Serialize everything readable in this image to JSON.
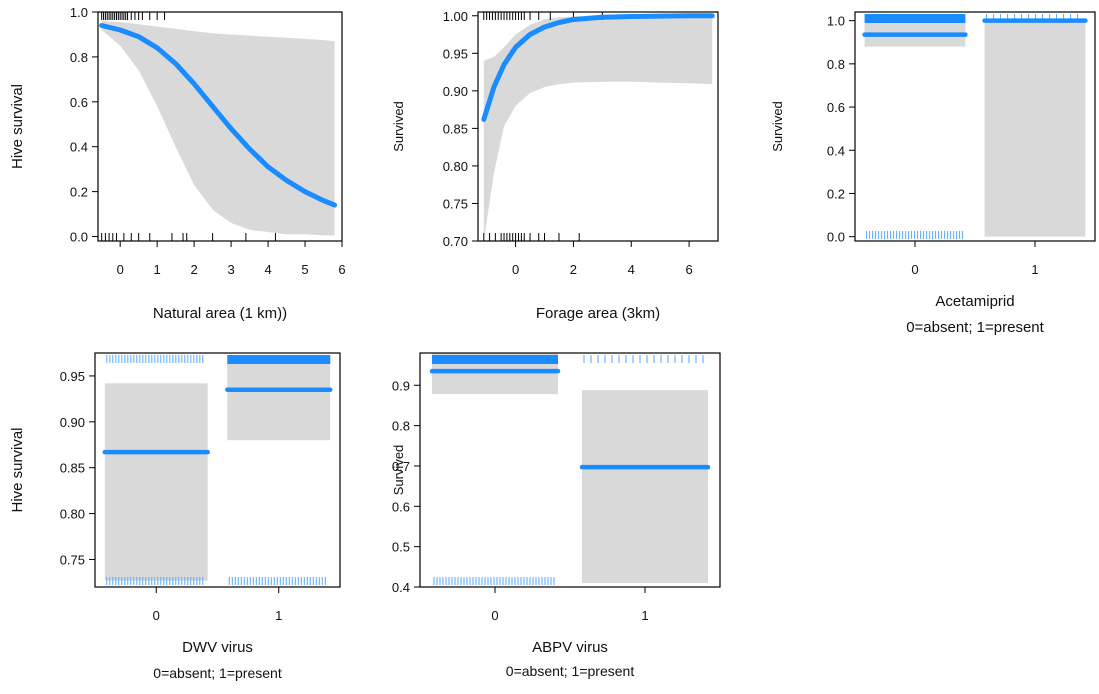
{
  "colors": {
    "line": "#1a8cff",
    "band": "#d9d9d9",
    "frame": "#000000",
    "rug_dark": "#000000",
    "rug_blue": "#55aaff"
  },
  "chart_data": [
    {
      "id": "natural-area",
      "type": "line",
      "ylabel": "Hive survival",
      "xlabel": "Natural area (1 km))",
      "xlim": [
        -0.6,
        6.0
      ],
      "ylim": [
        -0.02,
        1.0
      ],
      "xticks": [
        "0",
        "1",
        "2",
        "3",
        "4",
        "5",
        "6"
      ],
      "xtick_values": [
        0,
        1,
        2,
        3,
        4,
        5,
        6
      ],
      "yticks": [
        "0.0",
        "0.2",
        "0.4",
        "0.6",
        "0.8",
        "1.0"
      ],
      "ytick_values": [
        0.0,
        0.2,
        0.4,
        0.6,
        0.8,
        1.0
      ],
      "series": [
        {
          "x": [
            -0.5,
            0.0,
            0.5,
            1.0,
            1.5,
            2.0,
            2.5,
            3.0,
            3.5,
            4.0,
            4.5,
            5.0,
            5.5,
            5.8
          ],
          "y": [
            0.94,
            0.92,
            0.89,
            0.84,
            0.77,
            0.68,
            0.58,
            0.48,
            0.39,
            0.31,
            0.25,
            0.2,
            0.16,
            0.14
          ],
          "lower": [
            0.92,
            0.85,
            0.74,
            0.58,
            0.4,
            0.23,
            0.12,
            0.06,
            0.03,
            0.02,
            0.01,
            0.01,
            0.005,
            0.005
          ],
          "upper": [
            0.96,
            0.955,
            0.945,
            0.935,
            0.925,
            0.915,
            0.905,
            0.9,
            0.895,
            0.89,
            0.885,
            0.88,
            0.875,
            0.87
          ]
        }
      ],
      "rug_top": [
        -0.5,
        -0.45,
        -0.4,
        -0.35,
        -0.3,
        -0.25,
        -0.2,
        -0.15,
        -0.1,
        -0.05,
        0.0,
        0.05,
        0.1,
        0.15,
        0.2,
        0.3,
        0.4,
        0.5,
        0.6,
        0.8,
        1.0,
        1.2
      ],
      "rug_bottom": [
        -0.5,
        -0.4,
        -0.3,
        -0.2,
        -0.1,
        0.1,
        0.3,
        0.5,
        0.8,
        1.4,
        1.7,
        1.8,
        2.5,
        3.4,
        4.2
      ]
    },
    {
      "id": "forage-area",
      "type": "line",
      "ylabel": "Survived",
      "xlabel": "Forage area (3km)",
      "xlim": [
        -1.3,
        7.0
      ],
      "ylim": [
        0.7,
        1.005
      ],
      "xticks": [
        "0",
        "2",
        "4",
        "6"
      ],
      "xtick_values": [
        0,
        2,
        4,
        6
      ],
      "yticks": [
        "0.70",
        "0.75",
        "0.80",
        "0.85",
        "0.90",
        "0.95",
        "1.00"
      ],
      "ytick_values": [
        0.7,
        0.75,
        0.8,
        0.85,
        0.9,
        0.95,
        1.0
      ],
      "series": [
        {
          "x": [
            -1.1,
            -0.75,
            -0.4,
            0.0,
            0.5,
            1.0,
            1.5,
            2.0,
            3.0,
            4.0,
            5.0,
            6.0,
            6.8
          ],
          "y": [
            0.862,
            0.905,
            0.935,
            0.958,
            0.975,
            0.985,
            0.991,
            0.995,
            0.998,
            0.999,
            0.9995,
            1.0,
            1.0
          ],
          "lower": [
            0.7,
            0.79,
            0.853,
            0.88,
            0.897,
            0.905,
            0.909,
            0.911,
            0.912,
            0.912,
            0.911,
            0.91,
            0.909
          ],
          "upper": [
            0.94,
            0.945,
            0.958,
            0.975,
            0.988,
            0.995,
            0.998,
            0.999,
            1.0,
            1.0,
            1.0,
            1.0,
            1.0
          ]
        }
      ],
      "rug_top": [
        -1.1,
        -1.0,
        -0.9,
        -0.8,
        -0.7,
        -0.6,
        -0.5,
        -0.4,
        -0.3,
        -0.2,
        -0.1,
        0.0,
        0.1,
        0.2,
        0.3,
        0.5,
        0.8,
        1.2,
        2.0,
        3.0
      ],
      "rug_bottom": [
        -1.1,
        -0.9,
        -0.7,
        -0.5,
        -0.4,
        -0.3,
        -0.2,
        -0.1,
        0.0,
        0.1,
        0.2,
        0.3,
        0.5,
        0.8,
        1.0,
        1.5,
        2.2
      ]
    },
    {
      "id": "acetamiprid",
      "type": "bar",
      "ylabel": "Survived",
      "xlabel": "Acetamiprid",
      "sublabel": "0=absent; 1=present",
      "categories": [
        "0",
        "1"
      ],
      "ylim": [
        -0.02,
        1.04
      ],
      "yticks": [
        "0.0",
        "0.2",
        "0.4",
        "0.6",
        "0.8",
        "1.0"
      ],
      "ytick_values": [
        0.0,
        0.2,
        0.4,
        0.6,
        0.8,
        1.0
      ],
      "values": [
        0.935,
        1.0
      ],
      "lower": [
        0.88,
        0.0
      ],
      "upper": [
        1.0,
        1.0
      ],
      "rug_top": [
        "0"
      ],
      "rug_top_dense": [
        "0"
      ],
      "rug_bottom": [
        "0"
      ],
      "rug_top_light": [
        "1"
      ]
    },
    {
      "id": "dwv-virus",
      "type": "bar",
      "ylabel": "Hive survival",
      "xlabel": "DWV virus",
      "sublabel": "0=absent; 1=present",
      "categories": [
        "0",
        "1"
      ],
      "ylim": [
        0.72,
        0.975
      ],
      "yticks": [
        "0.75",
        "0.80",
        "0.85",
        "0.90",
        "0.95"
      ],
      "ytick_values": [
        0.75,
        0.8,
        0.85,
        0.9,
        0.95
      ],
      "values": [
        0.867,
        0.935
      ],
      "lower": [
        0.727,
        0.88
      ],
      "upper": [
        0.942,
        0.97
      ],
      "rug_top": [
        "0"
      ],
      "rug_top_dense": [
        "1"
      ],
      "rug_bottom": [
        "0",
        "1"
      ],
      "rug_top_light": []
    },
    {
      "id": "abpv-virus",
      "type": "bar",
      "ylabel": "Survived",
      "xlabel": "ABPV virus",
      "sublabel": "0=absent; 1=present",
      "categories": [
        "0",
        "1"
      ],
      "ylim": [
        0.4,
        0.98
      ],
      "yticks": [
        "0.4",
        "0.5",
        "0.6",
        "0.7",
        "0.8",
        "0.9"
      ],
      "ytick_values": [
        0.4,
        0.5,
        0.6,
        0.7,
        0.8,
        0.9
      ],
      "values": [
        0.935,
        0.697
      ],
      "lower": [
        0.878,
        0.41
      ],
      "upper": [
        0.98,
        0.888
      ],
      "rug_top": [],
      "rug_top_dense": [
        "0"
      ],
      "rug_bottom": [
        "0"
      ],
      "rug_top_light": [
        "1"
      ]
    }
  ]
}
